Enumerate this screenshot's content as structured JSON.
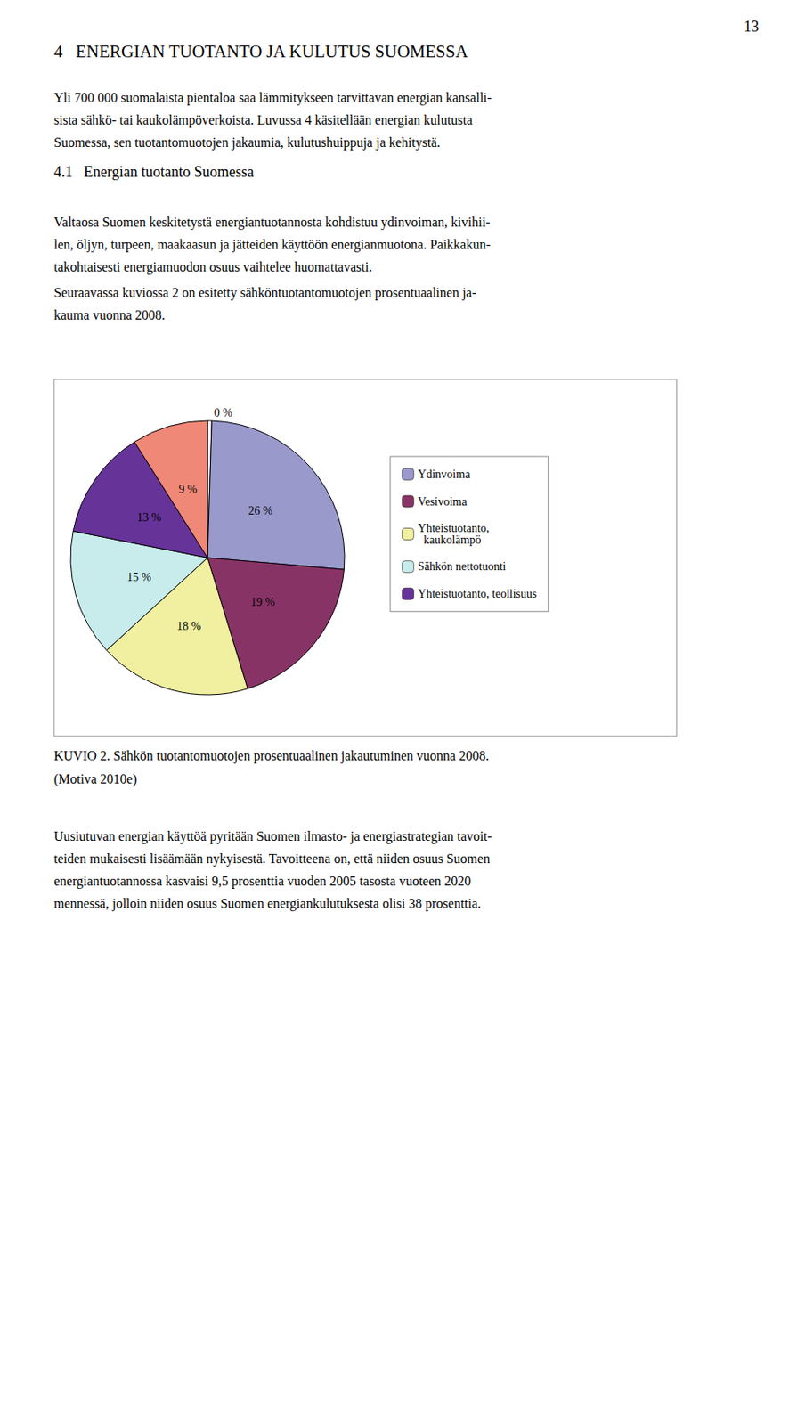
{
  "chart_data": {
    "type": "pie",
    "title": "KUVIO 2. Sähkön tuotantomuotojen prosentuaalinen jakautuminen vuonna 2008.",
    "subtitle": "(Motiva 2010e)",
    "annotations": [
      "13",
      "4   ENERGIAN TUOTANTO JA KULUTUS SUOMESSA",
      "Yli 700 000 suomalaista pientaloa saa lämmitykseen tarvittavan energian kansalli-",
      "sista sähkö- tai kaukolämpöverkoista. Luvussa 4 käsitellään energian kulutusta",
      "Suomessa, sen tuotantomuotojen jakaumia, kulutushuippuja ja kehitystä.",
      "4.1   Energian tuotanto Suomessa",
      "Valtaosa Suomen keskitetystä energiantuotannosta kohdistuu ydinvoiman, kivihii-",
      "len, öljyn, turpeen, maakaasun ja jätteiden käyttöön energianmuotona. Paikkakun-",
      "takohtaisesti energiamuodon osuus vaihtelee huomattavasti.",
      "Seuraavassa kuviossa 2 on esitetty sähköntuotantomuotojen prosentuaalinen ja-",
      "kauma vuonna 2008.",
      "Uusiutuvan energian käyttöä pyritään Suomen ilmasto- ja energiastrategian tavoit-",
      "teiden mukaisesti lisäämään nykyisestä. Tavoitteena on, että niiden osuus Suomen",
      "energiantuotannossa kasvaisi 9,5 prosenttia vuoden 2005 tasosta vuoteen 2020",
      "mennessä, jolloin niiden osuus Suomen energiankulutuksesta olisi 38 prosenttia."
    ],
    "categories": [
      null,
      "Ydinvoima",
      "Vesivoima",
      "Yhteistuotanto,\n  kaukolämpö",
      "Sähkön nettotuonti",
      "Yhteistuotanto, teollisuus",
      null
    ],
    "values": [
      0.5,
      26,
      19,
      18,
      15,
      13,
      9
    ],
    "value_labels": [
      "0 %",
      "26 %",
      "19 %",
      "18 %",
      "15 %",
      "13 %",
      "9 %"
    ],
    "colors": [
      "#FFFFFF",
      "#9999CC",
      "#883366",
      "#F0F0A0",
      "#C8ECEC",
      "#663399",
      "#F08878"
    ],
    "data_labels": true,
    "legend": "right"
  }
}
